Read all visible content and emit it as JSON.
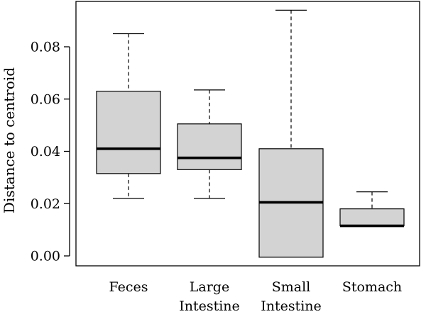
{
  "chart_data": {
    "type": "box",
    "title": "",
    "xlabel": "",
    "ylabel": "Distance to centroid",
    "ylim": [
      -0.004,
      0.098
    ],
    "yticks": [
      0.0,
      0.02,
      0.04,
      0.06,
      0.08
    ],
    "ytick_labels": [
      "0.00",
      "0.02",
      "0.04",
      "0.06",
      "0.08"
    ],
    "grid": false,
    "legend": "none",
    "box_fill": "#d3d3d3",
    "categories": [
      {
        "label_lines": [
          "Feces"
        ],
        "whisker_low": 0.022,
        "q1": 0.0315,
        "median": 0.041,
        "q3": 0.063,
        "whisker_high": 0.085
      },
      {
        "label_lines": [
          "Large",
          "Intestine"
        ],
        "whisker_low": 0.022,
        "q1": 0.033,
        "median": 0.0375,
        "q3": 0.0505,
        "whisker_high": 0.0635
      },
      {
        "label_lines": [
          "Small",
          "Intestine"
        ],
        "whisker_low": -0.0005,
        "q1": -0.0005,
        "median": 0.0205,
        "q3": 0.041,
        "whisker_high": 0.094
      },
      {
        "label_lines": [
          "Stomach"
        ],
        "whisker_low": 0.0115,
        "q1": 0.0115,
        "median": 0.0115,
        "q3": 0.018,
        "whisker_high": 0.0245
      }
    ]
  }
}
